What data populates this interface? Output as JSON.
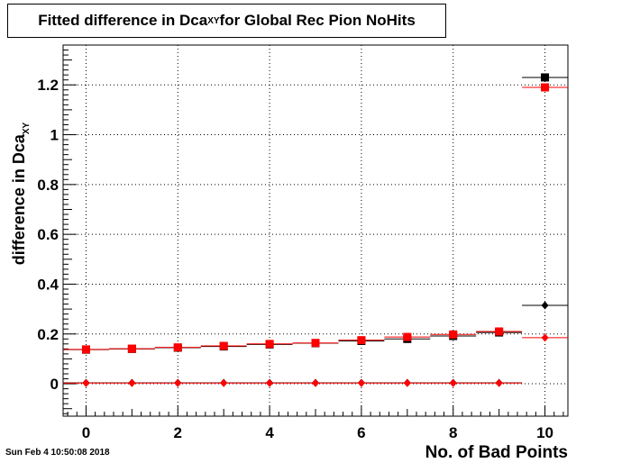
{
  "title": {
    "prefix": "Fitted difference in Dca",
    "subscript": "XY",
    "suffix": " for Global Rec Pion NoHits"
  },
  "timestamp": "Sun Feb  4 10:50:08 2018",
  "chart_data": {
    "type": "scatter",
    "xlabel": "No. of Bad Points",
    "ylabel_main": "difference in Dca",
    "ylabel_sub": "XY",
    "xlim": [
      -0.5,
      10.5
    ],
    "ylim": [
      -0.13,
      1.36
    ],
    "xticks": [
      0,
      2,
      4,
      6,
      8,
      10
    ],
    "xtick_labels": [
      "0",
      "2",
      "4",
      "6",
      "8",
      "10"
    ],
    "yticks": [
      0,
      0.2,
      0.4,
      0.6,
      0.8,
      1,
      1.2
    ],
    "ytick_labels": [
      "0",
      "0.2",
      "0.4",
      "0.6",
      "0.8",
      "1",
      "1.2"
    ],
    "grid": true,
    "colors": {
      "black": "#000000",
      "red": "#ff0000"
    },
    "series": [
      {
        "marker": "square",
        "color": "#000000",
        "x": [
          0,
          1,
          2,
          3,
          4,
          5,
          6,
          7,
          8,
          9,
          10
        ],
        "y": [
          0.137,
          0.14,
          0.145,
          0.15,
          0.158,
          0.163,
          0.172,
          0.18,
          0.192,
          0.206,
          1.23
        ]
      },
      {
        "marker": "square",
        "color": "#ff0000",
        "x": [
          0,
          1,
          2,
          3,
          4,
          5,
          6,
          7,
          8,
          9,
          10
        ],
        "y": [
          0.138,
          0.141,
          0.146,
          0.152,
          0.16,
          0.164,
          0.175,
          0.188,
          0.198,
          0.21,
          1.19
        ]
      },
      {
        "marker": "diamond",
        "color": "#000000",
        "x": [
          0,
          1,
          2,
          3,
          4,
          5,
          6,
          7,
          8,
          9,
          10
        ],
        "y": [
          0.004,
          0.004,
          0.004,
          0.004,
          0.004,
          0.004,
          0.004,
          0.004,
          0.004,
          0.004,
          0.315
        ]
      },
      {
        "marker": "diamond",
        "color": "#ff0000",
        "x": [
          0,
          1,
          2,
          3,
          4,
          5,
          6,
          7,
          8,
          9,
          10
        ],
        "y": [
          0.003,
          0.003,
          0.003,
          0.003,
          0.003,
          0.003,
          0.003,
          0.003,
          0.003,
          0.003,
          0.185
        ]
      }
    ]
  }
}
